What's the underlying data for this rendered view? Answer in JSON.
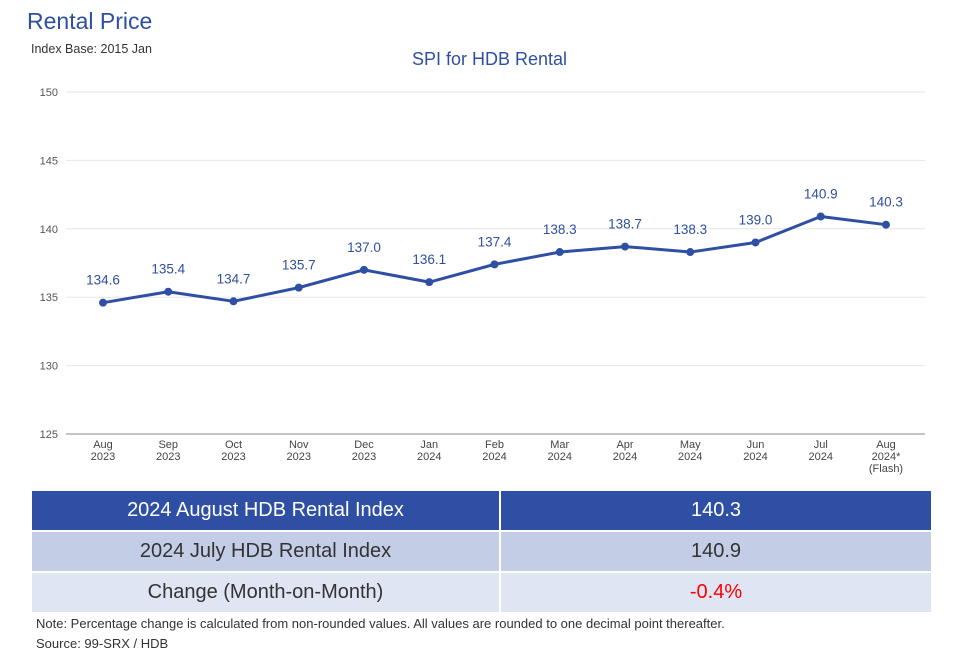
{
  "header": {
    "title": "Rental Price",
    "subtitle": "Index Base: 2015 Jan"
  },
  "chart_data": {
    "type": "line",
    "title": "SPI for HDB Rental",
    "xlabel": "",
    "ylabel": "",
    "ylim": [
      125,
      150
    ],
    "yticks": [
      125,
      130,
      135,
      140,
      145,
      150
    ],
    "grid": true,
    "categories": [
      [
        "Aug",
        "2023"
      ],
      [
        "Sep",
        "2023"
      ],
      [
        "Oct",
        "2023"
      ],
      [
        "Nov",
        "2023"
      ],
      [
        "Dec",
        "2023"
      ],
      [
        "Jan",
        "2024"
      ],
      [
        "Feb",
        "2024"
      ],
      [
        "Mar",
        "2024"
      ],
      [
        "Apr",
        "2024"
      ],
      [
        "May",
        "2024"
      ],
      [
        "Jun",
        "2024"
      ],
      [
        "Jul",
        "2024"
      ],
      [
        "Aug",
        "2024*",
        "(Flash)"
      ]
    ],
    "series": [
      {
        "values": [
          134.6,
          135.4,
          134.7,
          135.7,
          137.0,
          136.1,
          137.4,
          138.3,
          138.7,
          138.3,
          139.0,
          140.9,
          140.3
        ]
      }
    ],
    "data_labels": [
      "134.6",
      "135.4",
      "134.7",
      "135.7",
      "137.0",
      "136.1",
      "137.4",
      "138.3",
      "138.7",
      "138.3",
      "139.0",
      "140.9",
      "140.3"
    ],
    "colors": {
      "line": "#2e4fa3",
      "label": "#2f4fa1",
      "grid": "#e6e6e6",
      "axis": "#888888"
    }
  },
  "summary": {
    "rows": [
      {
        "label": "2024 August HDB Rental Index",
        "value": "140.3"
      },
      {
        "label": "2024 July HDB Rental Index",
        "value": "140.9"
      },
      {
        "label": "Change (Month-on-Month)",
        "value": "-0.4%"
      }
    ],
    "negative_color": "#ff0000"
  },
  "footer": {
    "note": "Note: Percentage change is calculated from non-rounded values.  All values are rounded to one decimal point thereafter.",
    "source": "Source: 99-SRX / HDB"
  }
}
